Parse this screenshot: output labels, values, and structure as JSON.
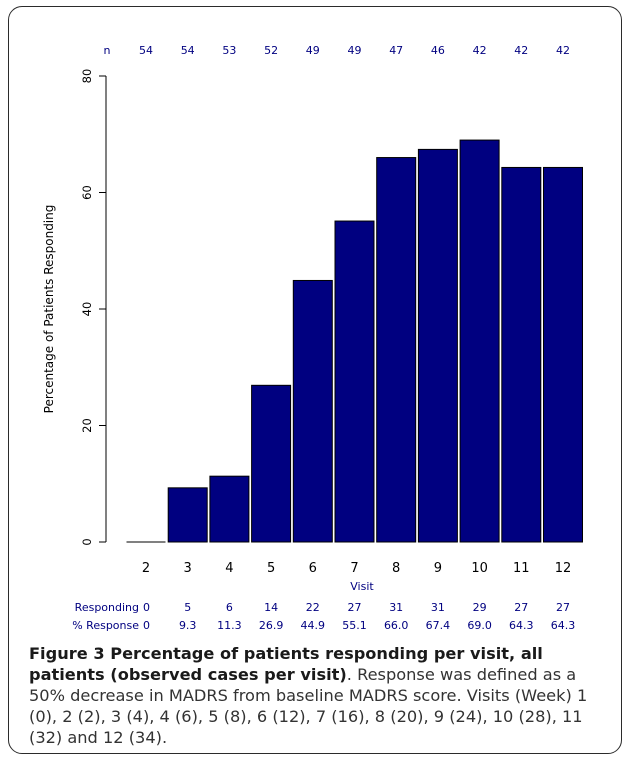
{
  "figure": {
    "caption_title": "Figure 3 Percentage of patients responding per visit, all patients (observed cases per visit)",
    "caption_body": ". Response was defined as a 50% decrease in MADRS from baseline MADRS score. Visits (Week) 1 (0), 2 (2), 3 (4), 4 (6), 5 (8), 6 (12), 7 (16), 8 (20), 9 (24), 10 (28), 11 (32) and 12 (34)."
  },
  "chart_data": {
    "type": "bar",
    "title": "",
    "xlabel": "Visit",
    "ylabel": "Percentage of Patients Responding",
    "ylim": [
      0,
      80
    ],
    "yticks": [
      0,
      20,
      40,
      60,
      80
    ],
    "categories": [
      "2",
      "3",
      "4",
      "5",
      "6",
      "7",
      "8",
      "9",
      "10",
      "11",
      "12"
    ],
    "values": [
      0,
      9.3,
      11.3,
      26.9,
      44.9,
      55.1,
      66.0,
      67.4,
      69.0,
      64.3,
      64.3
    ],
    "bar_color": "#000080",
    "grid": false,
    "n_row": {
      "label": "n",
      "values": [
        "54",
        "54",
        "53",
        "52",
        "49",
        "49",
        "47",
        "46",
        "42",
        "42",
        "42"
      ]
    },
    "responding_row": {
      "label": "Responding",
      "values": [
        "0",
        "5",
        "6",
        "14",
        "22",
        "27",
        "31",
        "31",
        "29",
        "27",
        "27"
      ]
    },
    "percent_row": {
      "label": "% Response",
      "values": [
        "0",
        "9.3",
        "11.3",
        "26.9",
        "44.9",
        "55.1",
        "66.0",
        "67.4",
        "69.0",
        "64.3",
        "64.3"
      ]
    },
    "annotation_color": "#000080"
  }
}
